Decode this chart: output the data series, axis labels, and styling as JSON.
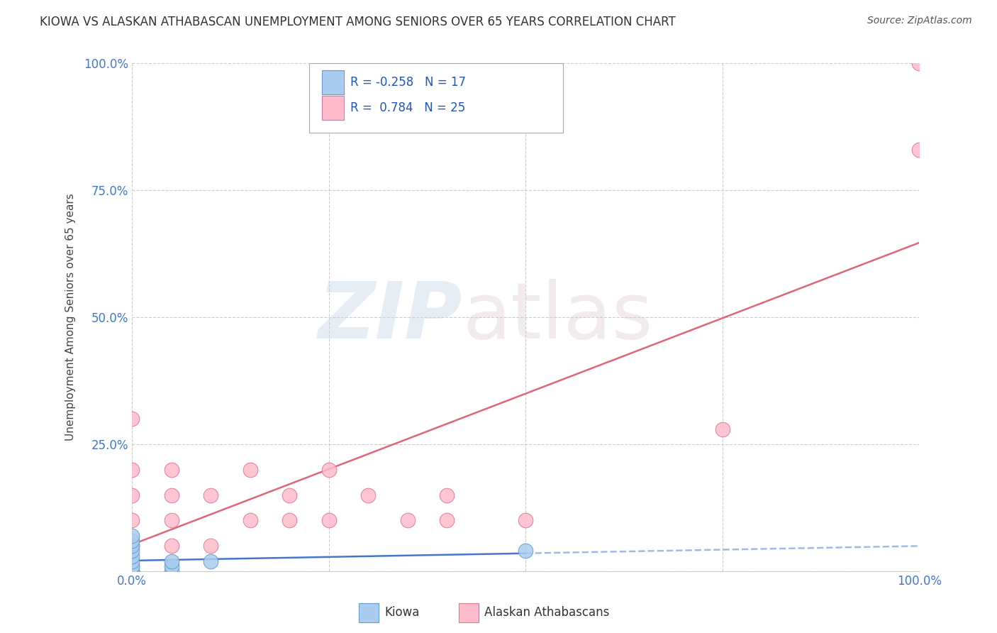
{
  "title": "KIOWA VS ALASKAN ATHABASCAN UNEMPLOYMENT AMONG SENIORS OVER 65 YEARS CORRELATION CHART",
  "source": "Source: ZipAtlas.com",
  "ylabel": "Unemployment Among Seniors over 65 years",
  "background_color": "#ffffff",
  "watermark_zip": "ZIP",
  "watermark_atlas": "atlas",
  "kiowa_color": "#aaccee",
  "kiowa_edge_color": "#6699cc",
  "athabascan_color": "#ffbbcc",
  "athabascan_edge_color": "#dd7799",
  "kiowa_line_color": "#4477cc",
  "athabascan_line_color": "#dd6677",
  "axis_label_color": "#4477cc",
  "title_color": "#333333",
  "grid_color": "#cccccc",
  "kiowa_x": [
    0.0,
    0.0,
    0.0,
    0.0,
    0.0,
    0.0,
    0.0,
    0.0,
    0.0,
    0.0,
    0.0,
    0.0,
    0.05,
    0.05,
    0.05,
    0.1,
    0.5
  ],
  "kiowa_y": [
    0.0,
    0.0,
    0.0,
    0.0,
    0.01,
    0.01,
    0.02,
    0.03,
    0.04,
    0.05,
    0.06,
    0.07,
    0.0,
    0.01,
    0.02,
    0.02,
    0.04
  ],
  "athabascan_x": [
    0.0,
    0.0,
    0.0,
    0.0,
    0.0,
    0.05,
    0.05,
    0.05,
    0.05,
    0.1,
    0.1,
    0.15,
    0.15,
    0.2,
    0.2,
    0.25,
    0.25,
    0.3,
    0.35,
    0.4,
    0.4,
    0.5,
    0.75,
    1.0,
    1.0
  ],
  "athabascan_y": [
    0.05,
    0.1,
    0.15,
    0.2,
    0.3,
    0.05,
    0.1,
    0.15,
    0.2,
    0.05,
    0.15,
    0.1,
    0.2,
    0.1,
    0.15,
    0.1,
    0.2,
    0.15,
    0.1,
    0.1,
    0.15,
    0.1,
    0.28,
    0.83,
    1.0
  ],
  "xlim": [
    0.0,
    1.0
  ],
  "ylim": [
    0.0,
    1.0
  ],
  "xticks": [
    0.0,
    0.25,
    0.5,
    0.75,
    1.0
  ],
  "xtick_labels": [
    "0.0%",
    "",
    "",
    "",
    "100.0%"
  ],
  "yticks": [
    0.0,
    0.25,
    0.5,
    0.75,
    1.0
  ],
  "ytick_labels": [
    "",
    "25.0%",
    "50.0%",
    "75.0%",
    "100.0%"
  ]
}
